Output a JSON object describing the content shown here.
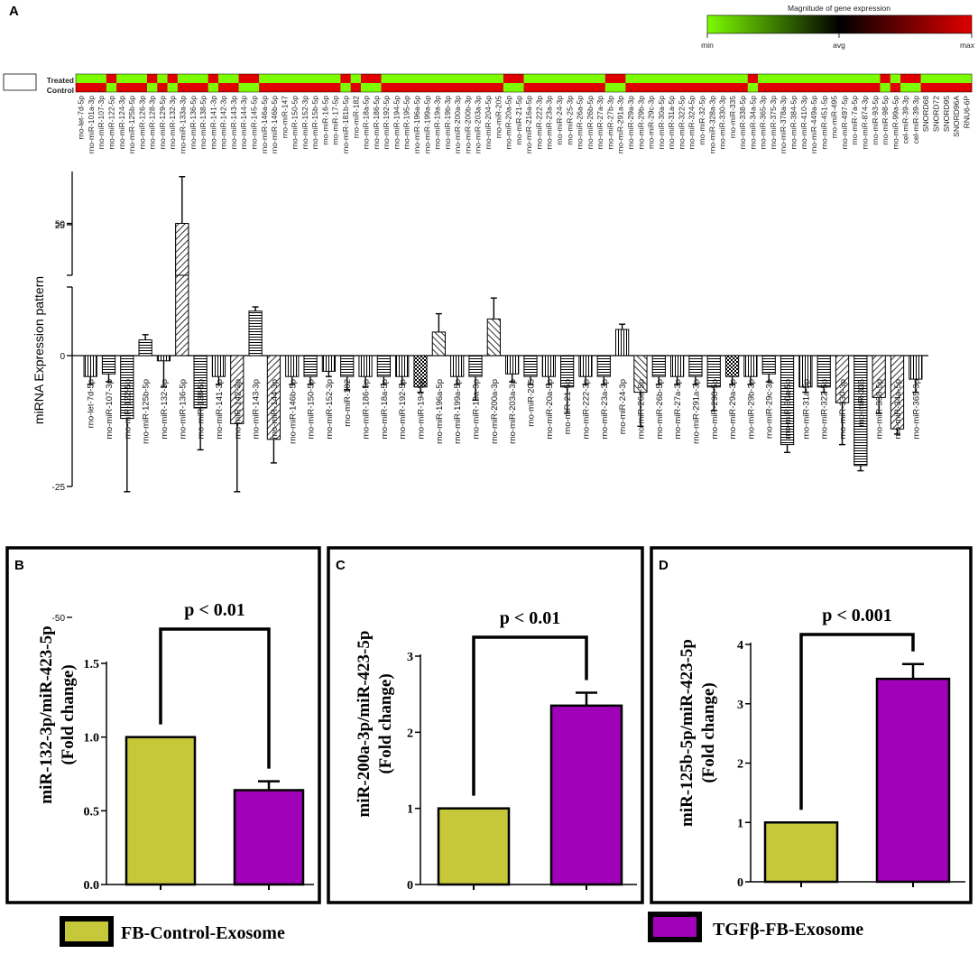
{
  "colors": {
    "green": "#7cfc00",
    "red": "#e00000",
    "yellow_bar": "#c6c83a",
    "purple_bar": "#a000b8"
  },
  "heatmap": {
    "panel_letter": "A",
    "scale_title": "Magnitude of gene expression",
    "scale_min": "min",
    "scale_avg": "avg",
    "scale_max": "max",
    "row_treated": "Treated",
    "row_control": "Control",
    "columns": [
      "rno-let-7d-5p",
      "rno-miR-101a-3p",
      "rno-miR-107-3p",
      "rno-miR-122-5p",
      "rno-miR-124-3p",
      "rno-miR-125b-5p",
      "rno-miR-126-3p",
      "rno-miR-128-3p",
      "rno-miR-129-5p",
      "rno-miR-132-3p",
      "rno-miR-133a-3p",
      "rno-miR-136-5p",
      "rno-miR-138-5p",
      "rno-miR-141-3p",
      "rno-miR-142-3p",
      "rno-miR-143-3p",
      "rno-miR-144-3p",
      "rno-miR-145-5p",
      "rno-miR-146a-5p",
      "rno-miR-146b-5p",
      "rno-miR-147",
      "rno-miR-150-5p",
      "rno-miR-152-3p",
      "rno-miR-15b-5p",
      "rno-miR-16-5p",
      "rno-miR-17-5p",
      "rno-miR-181b-5p",
      "rno-miR-182",
      "rno-miR-18a-5p",
      "rno-miR-186-5p",
      "rno-miR-192-5p",
      "rno-miR-194-5p",
      "rno-miR-195-5p",
      "rno-miR-196a-5p",
      "rno-miR-199a-5p",
      "rno-miR-19a-3p",
      "rno-miR-19b-3p",
      "rno-miR-200a-3p",
      "rno-miR-200b-3p",
      "rno-miR-203a-3p",
      "rno-miR-204-5p",
      "rno-miR-205",
      "rno-miR-20a-5p",
      "rno-miR-21-5p",
      "rno-miR-216a-5p",
      "rno-miR-222-3p",
      "rno-miR-23a-3p",
      "rno-miR-24-3p",
      "rno-miR-25-3p",
      "rno-miR-26a-5p",
      "rno-miR-26b-5p",
      "rno-miR-27a-3p",
      "rno-miR-27b-3p",
      "rno-miR-291a-3p",
      "rno-miR-29a-3p",
      "rno-miR-29b-3p",
      "rno-miR-29c-3p",
      "rno-miR-30a-5p",
      "rno-miR-31a-5p",
      "rno-miR-322-5p",
      "rno-miR-324-5p",
      "rno-miR-32-5p",
      "rno-miR-328a-3p",
      "rno-miR-330-3p",
      "rno-miR-335",
      "rno-miR-338-5p",
      "rno-miR-34a-5p",
      "rno-miR-365-3p",
      "rno-miR-375-3p",
      "rno-miR-378a-3p",
      "rno-miR-384-5p",
      "rno-miR-410-3p",
      "rno-miR-449a-5p",
      "rno-miR-451-5p",
      "rno-miR-495",
      "rno-miR-497-5p",
      "rno-miR-7a-5p",
      "rno-miR-874-3p",
      "rno-miR-93-5p",
      "rno-miR-98-5p",
      "rno-miR-99a-5p",
      "cel-miR-39-3p",
      "cel-miR-39-3p",
      "SNORD68",
      "SNORD72",
      "SNORD95",
      "SNORD96A",
      "RNU6-6P"
    ]
  },
  "chart_data": [
    {
      "type": "bar",
      "title": "",
      "ylabel": "miRNA Expression pattern",
      "ylim": [
        -50,
        70
      ],
      "axis_break": [
        25,
        30
      ],
      "yticks": [
        "50",
        "25",
        "0",
        "-25",
        "-50"
      ],
      "categories": [
        "rno-let-7d-5p",
        "rno-miR-107-3p",
        "rno-miR-122-5p",
        "rno-miR-125b-5p",
        "rno-miR-132-3p",
        "rno-miR-136-5p",
        "rno-miR-138-5p",
        "rno-miR-141-3p",
        "rno-miR-142-3p",
        "rno-miR-143-3p",
        "rno-miR-144-3p",
        "rno-miR-146b-5p",
        "rno-miR-150-5p",
        "rno-miR-152-3p",
        "rno-miR-182",
        "rno-miR-186-5p",
        "rno-miR-18a-5p",
        "rno-miR-192-5p",
        "rno-miR-194-5p",
        "rno-miR-196a-5p",
        "rno-miR-199a-5p",
        "rno-miR-19a-3p",
        "rno-miR-200a-3p",
        "rno-miR-203a-3p",
        "rno-miR-205",
        "rno-miR-20a-5p",
        "rno-miR-21-5p",
        "rno-miR-222-3p",
        "rno-miR-23a-3p",
        "rno-miR-24-3p",
        "rno-miR-26a-5p",
        "rno-miR-26b-5p",
        "rno-miR-27a-3p",
        "rno-miR-291a-3p",
        "rno-miR-298-5p",
        "rno-miR-29a-3p",
        "rno-miR-29b-3p",
        "rno-miR-29c-3p",
        "rno-miR-30a-5p",
        "rno-miR-31a-5p",
        "rno-miR-322-5p",
        "rno-miR-330-3p",
        "rno-miR-335",
        "rno-miR-338-5p",
        "rno-miR-34a-5p",
        "rno-miR-365-3p"
      ],
      "values": [
        -4,
        -3.5,
        -12,
        3,
        -1,
        50,
        -10,
        -4,
        -13,
        8.5,
        -16,
        -4,
        -4,
        -3,
        -4,
        -4,
        -4,
        -4,
        -6,
        4.5,
        -4,
        -4,
        7,
        -3.5,
        -4,
        -4,
        -6,
        -4,
        -4,
        5,
        -7,
        -4,
        -4,
        -4,
        -6,
        -4,
        -4,
        -3.5,
        -17,
        -6,
        -6,
        -9,
        -21,
        -8,
        -14,
        -4.5
      ],
      "errors": [
        1.5,
        1.5,
        14,
        1,
        5,
        18,
        8,
        1.5,
        13,
        0.8,
        4.5,
        1.5,
        1.5,
        1,
        2.5,
        2,
        1.5,
        1.5,
        1,
        3.5,
        1.5,
        4.5,
        4,
        1.5,
        1.5,
        1.5,
        5,
        1.5,
        1.5,
        1,
        6.5,
        1.5,
        1.5,
        1.5,
        4.5,
        1.5,
        1.5,
        1.5,
        1.5,
        1,
        1,
        8,
        1,
        3,
        1,
        2.5
      ]
    },
    {
      "type": "bar",
      "panel": "B",
      "ylabel_line1": "miR-132-3p/miR-423-5p",
      "ylabel_line2": "(Fold change)",
      "categories": [
        "FB-Control-Exosome",
        "TGFβ-FB-Exosome"
      ],
      "values": [
        1.0,
        0.64
      ],
      "errors": [
        0.0,
        0.06
      ],
      "ylim": [
        0,
        1.5
      ],
      "yticks": [
        "0.0",
        "0.5",
        "1.0",
        "1.5"
      ],
      "annotation": "p < 0.01"
    },
    {
      "type": "bar",
      "panel": "C",
      "ylabel_line1": "miR-200a-3p/miR-423-5p",
      "ylabel_line2": "(Fold change)",
      "categories": [
        "FB-Control-Exosome",
        "TGFβ-FB-Exosome"
      ],
      "values": [
        1.0,
        2.35
      ],
      "errors": [
        0.0,
        0.17
      ],
      "ylim": [
        0,
        3
      ],
      "yticks": [
        "0",
        "1",
        "2",
        "3"
      ],
      "annotation": "p < 0.01"
    },
    {
      "type": "bar",
      "panel": "D",
      "ylabel_line1": "miR-125b-5p/miR-423-5p",
      "ylabel_line2": "(Fold change)",
      "categories": [
        "FB-Control-Exosome",
        "TGFβ-FB-Exosome"
      ],
      "values": [
        1.0,
        3.42
      ],
      "errors": [
        0.0,
        0.25
      ],
      "ylim": [
        0,
        4
      ],
      "yticks": [
        "0",
        "1",
        "2",
        "3",
        "4"
      ],
      "annotation": "p < 0.001"
    }
  ],
  "legend": {
    "control_label": "FB-Control-Exosome",
    "tgf_label": "TGFβ-FB-Exosome"
  }
}
